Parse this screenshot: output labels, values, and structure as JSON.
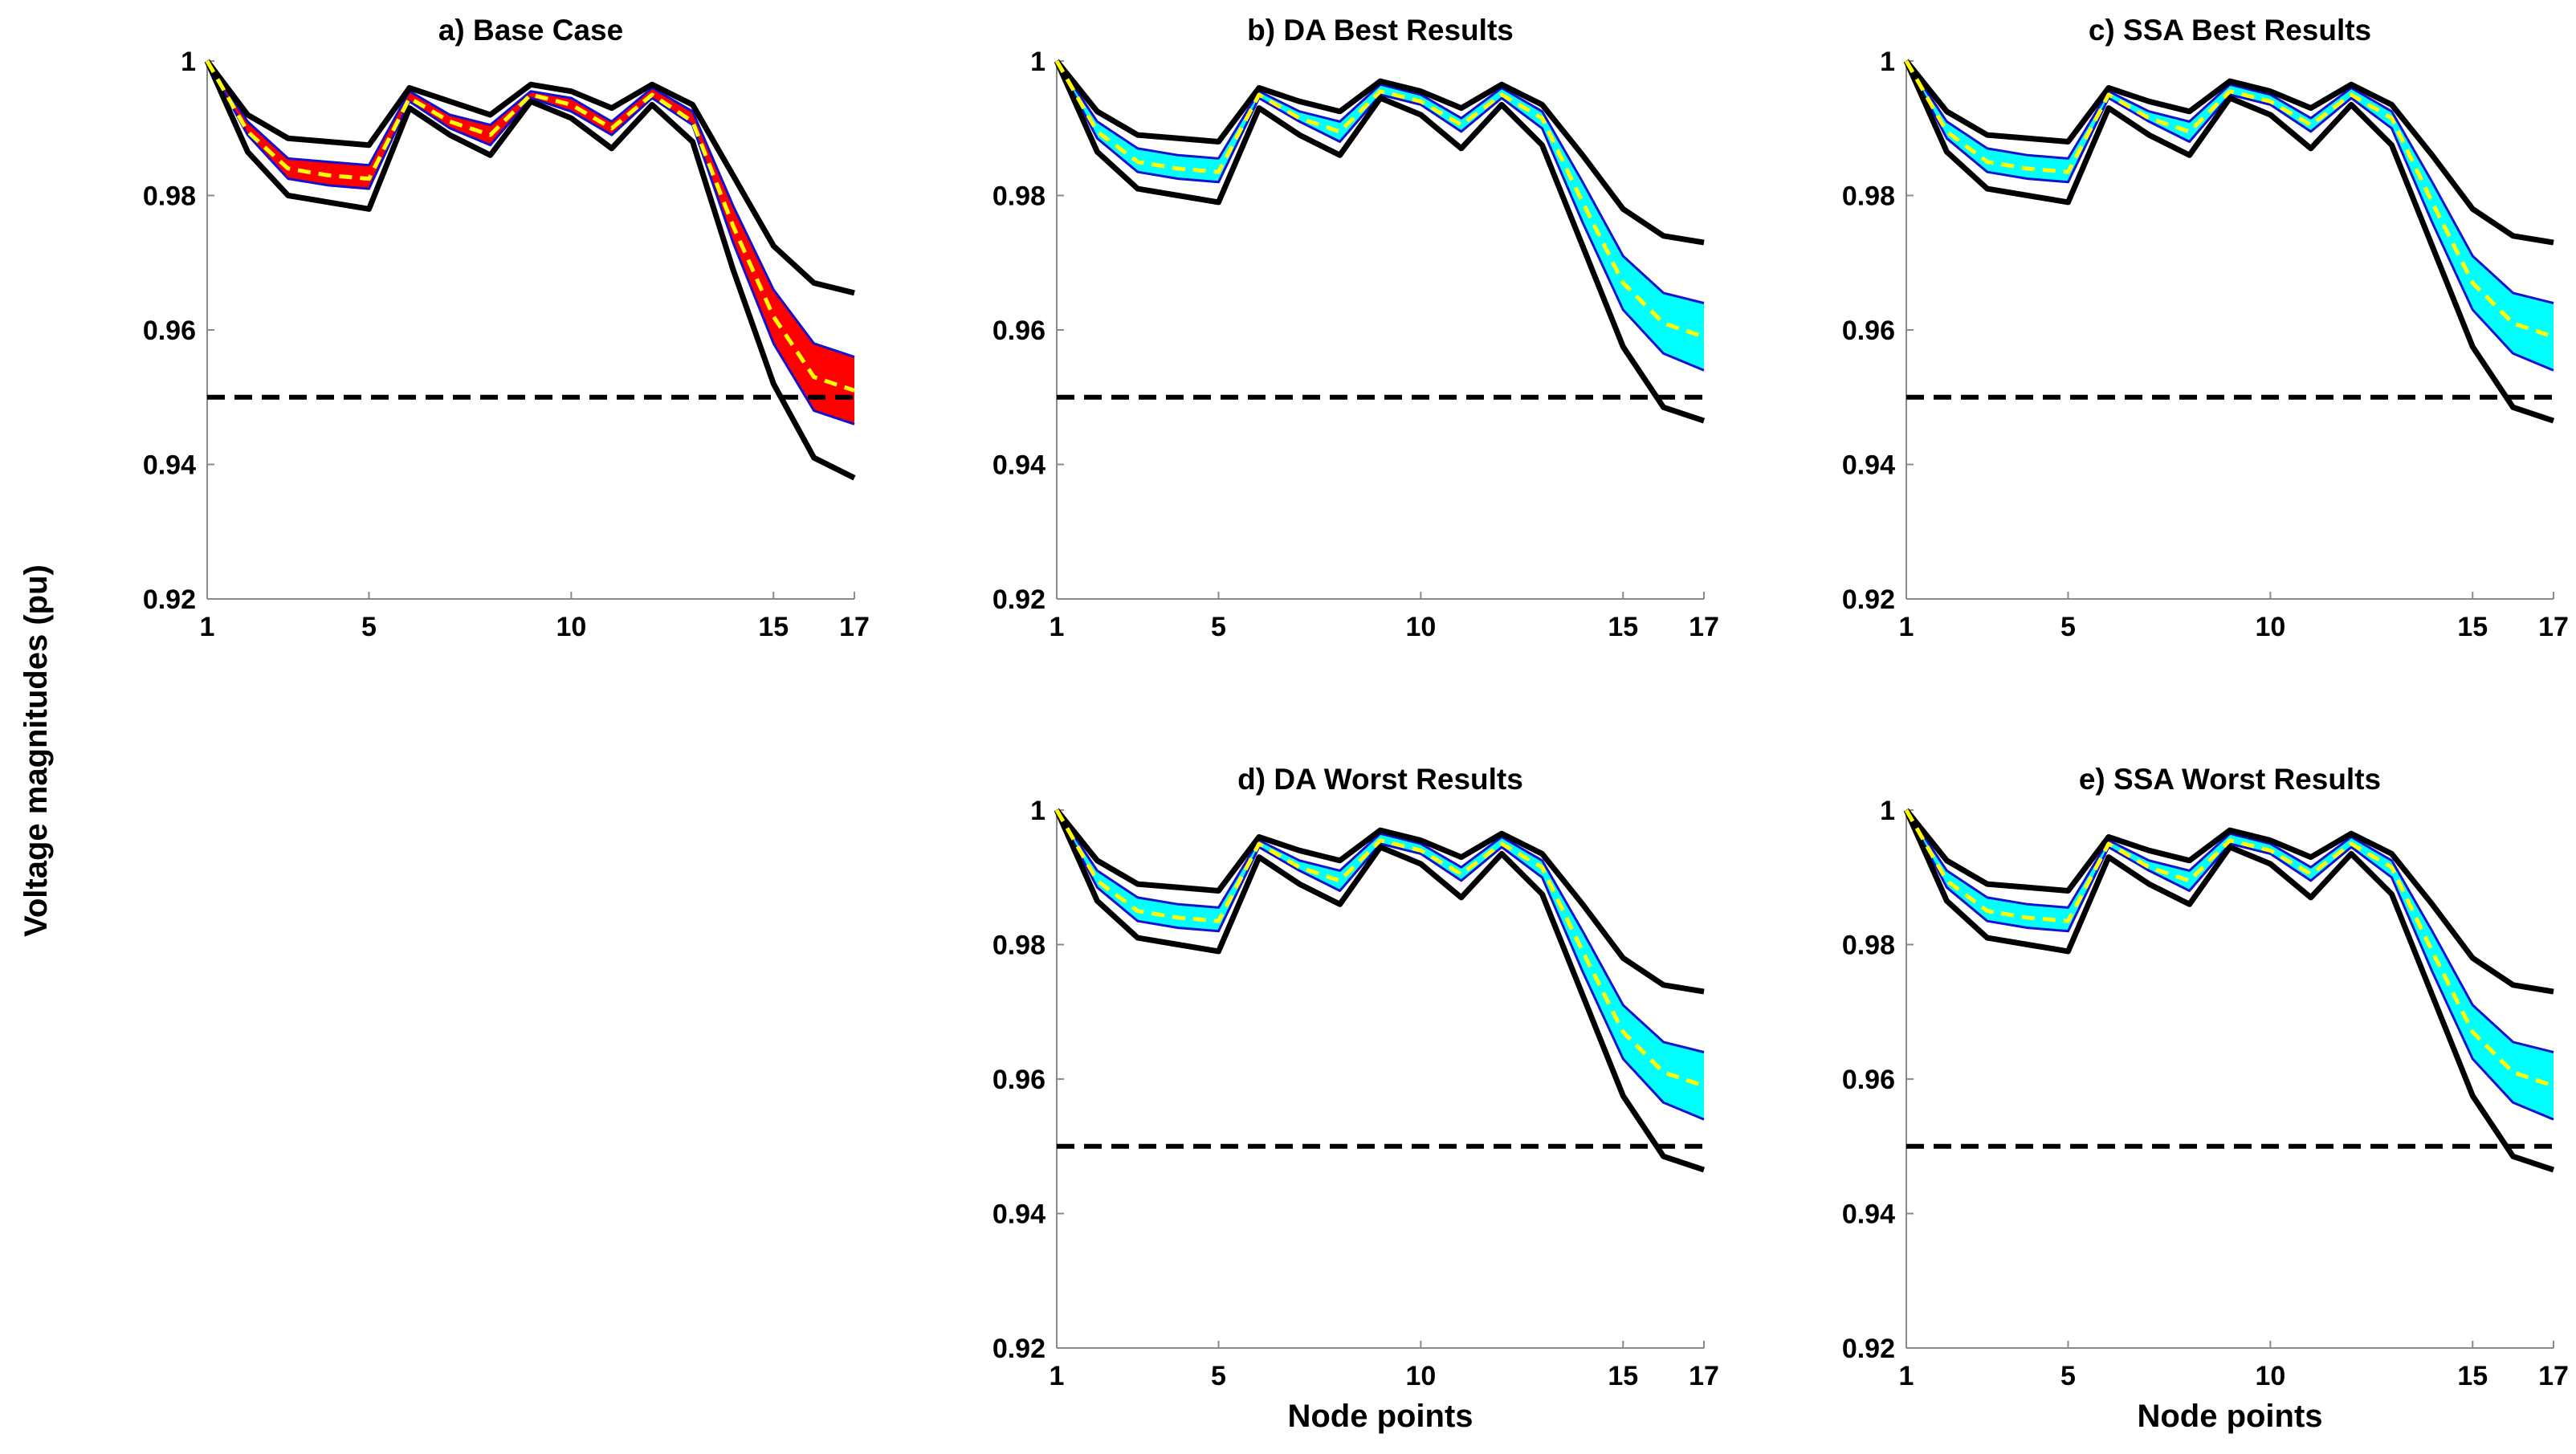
{
  "figure": {
    "ylabel": "Voltage magnitudes (pu)",
    "xlabel": "Node points"
  },
  "chart_data": [
    {
      "panel": "a",
      "type": "line",
      "title": "a) Base Case",
      "band_color": "#ff0000",
      "show_xlabel": false,
      "ylim": [
        0.92,
        1.0
      ],
      "yticks": [
        0.92,
        0.94,
        0.96,
        0.98,
        1.0
      ],
      "ytick_labels": [
        "0.92",
        "0.94",
        "0.96",
        "0.98",
        "1"
      ],
      "xlim": [
        1,
        17
      ],
      "xticks": [
        1,
        5,
        10,
        15,
        17
      ],
      "xtick_labels": [
        "1",
        "5",
        "10",
        "15",
        "17"
      ],
      "x": [
        1,
        2,
        3,
        4,
        5,
        6,
        7,
        8,
        9,
        10,
        11,
        12,
        13,
        14,
        15,
        16,
        17
      ],
      "series": [
        {
          "name": "upper envelope",
          "values": [
            1.0,
            0.992,
            0.9885,
            0.988,
            0.9875,
            0.996,
            0.994,
            0.992,
            0.9965,
            0.9955,
            0.993,
            0.9965,
            0.9935,
            0.983,
            0.9725,
            0.967,
            0.9655
          ]
        },
        {
          "name": "band upper",
          "values": [
            1.0,
            0.991,
            0.9855,
            0.985,
            0.9845,
            0.9955,
            0.992,
            0.9905,
            0.9955,
            0.9945,
            0.991,
            0.996,
            0.9925,
            0.9785,
            0.966,
            0.958,
            0.956
          ]
        },
        {
          "name": "mean",
          "values": [
            1.0,
            0.9895,
            0.984,
            0.983,
            0.9825,
            0.9945,
            0.991,
            0.989,
            0.995,
            0.9935,
            0.99,
            0.995,
            0.991,
            0.9755,
            0.962,
            0.953,
            0.951
          ]
        },
        {
          "name": "band lower",
          "values": [
            1.0,
            0.989,
            0.9825,
            0.9815,
            0.981,
            0.994,
            0.99,
            0.9875,
            0.9945,
            0.9925,
            0.989,
            0.9945,
            0.9905,
            0.973,
            0.958,
            0.948,
            0.946
          ]
        },
        {
          "name": "lower envelope",
          "values": [
            1.0,
            0.9865,
            0.98,
            0.979,
            0.978,
            0.993,
            0.989,
            0.986,
            0.994,
            0.9915,
            0.987,
            0.9935,
            0.988,
            0.969,
            0.952,
            0.941,
            0.938
          ]
        }
      ],
      "limit": 0.95
    },
    {
      "panel": "b",
      "type": "line",
      "title": "b) DA Best Results",
      "band_color": "#00ffff",
      "show_xlabel": false,
      "ylim": [
        0.92,
        1.0
      ],
      "yticks": [
        0.92,
        0.94,
        0.96,
        0.98,
        1.0
      ],
      "ytick_labels": [
        "0.92",
        "0.94",
        "0.96",
        "0.98",
        "1"
      ],
      "xlim": [
        1,
        17
      ],
      "xticks": [
        1,
        5,
        10,
        15,
        17
      ],
      "xtick_labels": [
        "1",
        "5",
        "10",
        "15",
        "17"
      ],
      "x": [
        1,
        2,
        3,
        4,
        5,
        6,
        7,
        8,
        9,
        10,
        11,
        12,
        13,
        14,
        15,
        16,
        17
      ],
      "series": [
        {
          "name": "upper envelope",
          "values": [
            1.0,
            0.9925,
            0.989,
            0.9885,
            0.988,
            0.996,
            0.994,
            0.9925,
            0.997,
            0.9955,
            0.993,
            0.9965,
            0.9935,
            0.986,
            0.978,
            0.974,
            0.973
          ]
        },
        {
          "name": "band upper",
          "values": [
            1.0,
            0.991,
            0.987,
            0.986,
            0.9855,
            0.9955,
            0.9925,
            0.991,
            0.9965,
            0.995,
            0.9915,
            0.996,
            0.9925,
            0.982,
            0.971,
            0.9655,
            0.964
          ]
        },
        {
          "name": "mean",
          "values": [
            1.0,
            0.9895,
            0.985,
            0.984,
            0.9835,
            0.995,
            0.9915,
            0.9895,
            0.9955,
            0.994,
            0.9905,
            0.995,
            0.9915,
            0.979,
            0.967,
            0.961,
            0.959
          ]
        },
        {
          "name": "band lower",
          "values": [
            1.0,
            0.9885,
            0.9835,
            0.9825,
            0.982,
            0.9945,
            0.991,
            0.988,
            0.995,
            0.9935,
            0.9895,
            0.9945,
            0.99,
            0.976,
            0.963,
            0.9565,
            0.954
          ]
        },
        {
          "name": "lower envelope",
          "values": [
            1.0,
            0.9865,
            0.981,
            0.98,
            0.979,
            0.993,
            0.989,
            0.986,
            0.9945,
            0.992,
            0.987,
            0.9935,
            0.9875,
            0.9725,
            0.9575,
            0.9485,
            0.9465
          ]
        }
      ],
      "limit": 0.95
    },
    {
      "panel": "c",
      "type": "line",
      "title": "c) SSA Best Results",
      "band_color": "#00ffff",
      "show_xlabel": false,
      "ylim": [
        0.92,
        1.0
      ],
      "yticks": [
        0.92,
        0.94,
        0.96,
        0.98,
        1.0
      ],
      "ytick_labels": [
        "0.92",
        "0.94",
        "0.96",
        "0.98",
        "1"
      ],
      "xlim": [
        1,
        17
      ],
      "xticks": [
        1,
        5,
        10,
        15,
        17
      ],
      "xtick_labels": [
        "1",
        "5",
        "10",
        "15",
        "17"
      ],
      "x": [
        1,
        2,
        3,
        4,
        5,
        6,
        7,
        8,
        9,
        10,
        11,
        12,
        13,
        14,
        15,
        16,
        17
      ],
      "series": [
        {
          "name": "upper envelope",
          "values": [
            1.0,
            0.9925,
            0.989,
            0.9885,
            0.988,
            0.996,
            0.994,
            0.9925,
            0.997,
            0.9955,
            0.993,
            0.9965,
            0.9935,
            0.986,
            0.978,
            0.974,
            0.973
          ]
        },
        {
          "name": "band upper",
          "values": [
            1.0,
            0.991,
            0.987,
            0.986,
            0.9855,
            0.9955,
            0.9925,
            0.991,
            0.9965,
            0.995,
            0.9915,
            0.996,
            0.9925,
            0.982,
            0.971,
            0.9655,
            0.964
          ]
        },
        {
          "name": "mean",
          "values": [
            1.0,
            0.9895,
            0.985,
            0.984,
            0.9835,
            0.995,
            0.9915,
            0.9895,
            0.9955,
            0.994,
            0.9905,
            0.995,
            0.9915,
            0.979,
            0.967,
            0.961,
            0.959
          ]
        },
        {
          "name": "band lower",
          "values": [
            1.0,
            0.9885,
            0.9835,
            0.9825,
            0.982,
            0.9945,
            0.991,
            0.988,
            0.995,
            0.9935,
            0.9895,
            0.9945,
            0.99,
            0.976,
            0.963,
            0.9565,
            0.954
          ]
        },
        {
          "name": "lower envelope",
          "values": [
            1.0,
            0.9865,
            0.981,
            0.98,
            0.979,
            0.993,
            0.989,
            0.986,
            0.9945,
            0.992,
            0.987,
            0.9935,
            0.9875,
            0.9725,
            0.9575,
            0.9485,
            0.9465
          ]
        }
      ],
      "limit": 0.95
    },
    {
      "panel": "d",
      "type": "line",
      "title": "d) DA Worst Results",
      "band_color": "#00ffff",
      "show_xlabel": true,
      "ylim": [
        0.92,
        1.0
      ],
      "yticks": [
        0.92,
        0.94,
        0.96,
        0.98,
        1.0
      ],
      "ytick_labels": [
        "0.92",
        "0.94",
        "0.96",
        "0.98",
        "1"
      ],
      "xlim": [
        1,
        17
      ],
      "xticks": [
        1,
        5,
        10,
        15,
        17
      ],
      "xtick_labels": [
        "1",
        "5",
        "10",
        "15",
        "17"
      ],
      "x": [
        1,
        2,
        3,
        4,
        5,
        6,
        7,
        8,
        9,
        10,
        11,
        12,
        13,
        14,
        15,
        16,
        17
      ],
      "series": [
        {
          "name": "upper envelope",
          "values": [
            1.0,
            0.9925,
            0.989,
            0.9885,
            0.988,
            0.996,
            0.994,
            0.9925,
            0.997,
            0.9955,
            0.993,
            0.9965,
            0.9935,
            0.986,
            0.978,
            0.974,
            0.973
          ]
        },
        {
          "name": "band upper",
          "values": [
            1.0,
            0.991,
            0.987,
            0.986,
            0.9855,
            0.9955,
            0.9925,
            0.991,
            0.9965,
            0.995,
            0.9915,
            0.996,
            0.9925,
            0.982,
            0.971,
            0.9655,
            0.964
          ]
        },
        {
          "name": "mean",
          "values": [
            1.0,
            0.9895,
            0.985,
            0.984,
            0.9835,
            0.995,
            0.9915,
            0.9895,
            0.9955,
            0.994,
            0.9905,
            0.995,
            0.9915,
            0.979,
            0.967,
            0.961,
            0.959
          ]
        },
        {
          "name": "band lower",
          "values": [
            1.0,
            0.9885,
            0.9835,
            0.9825,
            0.982,
            0.9945,
            0.991,
            0.988,
            0.995,
            0.9935,
            0.9895,
            0.9945,
            0.99,
            0.976,
            0.963,
            0.9565,
            0.954
          ]
        },
        {
          "name": "lower envelope",
          "values": [
            1.0,
            0.9865,
            0.981,
            0.98,
            0.979,
            0.993,
            0.989,
            0.986,
            0.9945,
            0.992,
            0.987,
            0.9935,
            0.9875,
            0.9725,
            0.9575,
            0.9485,
            0.9465
          ]
        }
      ],
      "limit": 0.95
    },
    {
      "panel": "e",
      "type": "line",
      "title": "e) SSA Worst Results",
      "band_color": "#00ffff",
      "show_xlabel": true,
      "ylim": [
        0.92,
        1.0
      ],
      "yticks": [
        0.92,
        0.94,
        0.96,
        0.98,
        1.0
      ],
      "ytick_labels": [
        "0.92",
        "0.94",
        "0.96",
        "0.98",
        "1"
      ],
      "xlim": [
        1,
        17
      ],
      "xticks": [
        1,
        5,
        10,
        15,
        17
      ],
      "xtick_labels": [
        "1",
        "5",
        "10",
        "15",
        "17"
      ],
      "x": [
        1,
        2,
        3,
        4,
        5,
        6,
        7,
        8,
        9,
        10,
        11,
        12,
        13,
        14,
        15,
        16,
        17
      ],
      "series": [
        {
          "name": "upper envelope",
          "values": [
            1.0,
            0.9925,
            0.989,
            0.9885,
            0.988,
            0.996,
            0.994,
            0.9925,
            0.997,
            0.9955,
            0.993,
            0.9965,
            0.9935,
            0.986,
            0.978,
            0.974,
            0.973
          ]
        },
        {
          "name": "band upper",
          "values": [
            1.0,
            0.991,
            0.987,
            0.986,
            0.9855,
            0.9955,
            0.9925,
            0.991,
            0.9965,
            0.995,
            0.9915,
            0.996,
            0.9925,
            0.982,
            0.971,
            0.9655,
            0.964
          ]
        },
        {
          "name": "mean",
          "values": [
            1.0,
            0.9895,
            0.985,
            0.984,
            0.9835,
            0.995,
            0.9915,
            0.9895,
            0.9955,
            0.994,
            0.9905,
            0.995,
            0.9915,
            0.979,
            0.967,
            0.961,
            0.959
          ]
        },
        {
          "name": "band lower",
          "values": [
            1.0,
            0.9885,
            0.9835,
            0.9825,
            0.982,
            0.9945,
            0.991,
            0.988,
            0.995,
            0.9935,
            0.9895,
            0.9945,
            0.99,
            0.976,
            0.963,
            0.9565,
            0.954
          ]
        },
        {
          "name": "lower envelope",
          "values": [
            1.0,
            0.9865,
            0.981,
            0.98,
            0.979,
            0.993,
            0.989,
            0.986,
            0.9945,
            0.992,
            0.987,
            0.9935,
            0.9875,
            0.9725,
            0.9575,
            0.9485,
            0.9465
          ]
        }
      ],
      "limit": 0.95
    }
  ]
}
